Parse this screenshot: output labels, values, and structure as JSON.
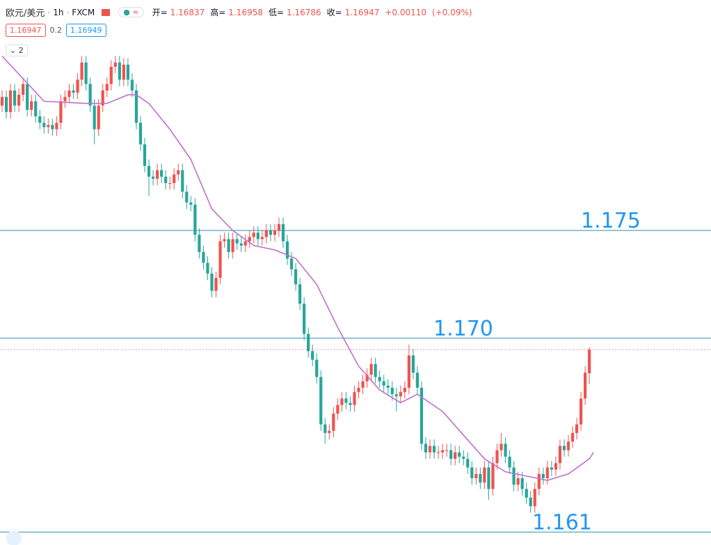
{
  "header": {
    "symbol": "欧元/美元",
    "interval": "1h",
    "source": "FXCM",
    "open_key": "开=",
    "high_key": "高=",
    "low_key": "低=",
    "close_key": "收=",
    "change": "+0.00110",
    "change_pct": "(+0.09%)",
    "pill": "≈"
  },
  "quote": {
    "bid": "1.16947",
    "spread": "0.2",
    "ask": "1.16949"
  },
  "indicators_count": "2",
  "chart_data": {
    "type": "candlestick",
    "xlim": [
      -0.5,
      169
    ],
    "ylim": [
      1.1604,
      1.1857
    ],
    "up_color": "#ef5350",
    "down_color": "#26a69a",
    "open": [
      1.1808,
      1.1812,
      1.1805,
      1.1815,
      1.1808,
      1.1813,
      1.1818,
      1.1806,
      1.181,
      1.1803,
      1.18,
      1.1798,
      1.1799,
      1.1797,
      1.18,
      1.181,
      1.1812,
      1.1815,
      1.1814,
      1.182,
      1.1828,
      1.1818,
      1.1808,
      1.1797,
      1.1808,
      1.1815,
      1.1818,
      1.1826,
      1.1828,
      1.182,
      1.1827,
      1.182,
      1.1815,
      1.18,
      1.179,
      1.178,
      1.1775,
      1.1774,
      1.1778,
      1.1775,
      1.1772,
      1.1772,
      1.1776,
      1.1778,
      1.1768,
      1.1763,
      1.1762,
      1.1748,
      1.174,
      1.1735,
      1.173,
      1.1722,
      1.1728,
      1.1745,
      1.1746,
      1.174,
      1.1746,
      1.1744,
      1.1743,
      1.1745,
      1.1747,
      1.1749,
      1.1746,
      1.1747,
      1.175,
      1.1748,
      1.175,
      1.1753,
      1.1745,
      1.1737,
      1.1732,
      1.1725,
      1.1716,
      1.1702,
      1.1694,
      1.169,
      1.1682,
      1.166,
      1.1656,
      1.1657,
      1.1665,
      1.1669,
      1.1672,
      1.167,
      1.1669,
      1.1675,
      1.1677,
      1.168,
      1.1683,
      1.1688,
      1.1682,
      1.168,
      1.1678,
      1.1677,
      1.1674,
      1.1673,
      1.1675,
      1.1677,
      1.1692,
      1.1684,
      1.1677,
      1.1651,
      1.1647,
      1.165,
      1.1647,
      1.1647,
      1.1648,
      1.1648,
      1.1644,
      1.1647,
      1.1645,
      1.1644,
      1.164,
      1.1635,
      1.1637,
      1.1633,
      1.164,
      1.163,
      1.1642,
      1.1648,
      1.1651,
      1.1645,
      1.164,
      1.1632,
      1.1635,
      1.163,
      1.1626,
      1.1622,
      1.163,
      1.1637,
      1.1635,
      1.164,
      1.1639,
      1.1642,
      1.165,
      1.1648,
      1.1652,
      1.1656,
      1.166,
      1.1672,
      1.16837
    ],
    "high": [
      1.1815,
      1.1815,
      1.1818,
      1.1818,
      1.1816,
      1.1821,
      1.1821,
      1.1813,
      1.1813,
      1.1806,
      1.1803,
      1.1802,
      1.1802,
      1.1803,
      1.1813,
      1.1815,
      1.1818,
      1.1818,
      1.1823,
      1.1831,
      1.1831,
      1.1821,
      1.1811,
      1.1811,
      1.1818,
      1.1821,
      1.1829,
      1.1831,
      1.1831,
      1.183,
      1.183,
      1.1823,
      1.1818,
      1.1803,
      1.1793,
      1.1783,
      1.1778,
      1.1781,
      1.1781,
      1.1778,
      1.1775,
      1.1779,
      1.1781,
      1.1781,
      1.1771,
      1.1766,
      1.1765,
      1.1751,
      1.1743,
      1.1738,
      1.1733,
      1.1731,
      1.1748,
      1.1749,
      1.1749,
      1.1749,
      1.1749,
      1.1747,
      1.1748,
      1.175,
      1.1752,
      1.1752,
      1.175,
      1.1753,
      1.1753,
      1.1753,
      1.1756,
      1.1756,
      1.1748,
      1.174,
      1.1735,
      1.1728,
      1.1719,
      1.1705,
      1.1697,
      1.1693,
      1.1685,
      1.1663,
      1.166,
      1.1668,
      1.1672,
      1.1675,
      1.1675,
      1.1673,
      1.1678,
      1.168,
      1.1683,
      1.1686,
      1.1691,
      1.1691,
      1.1685,
      1.1683,
      1.1681,
      1.168,
      1.1677,
      1.1678,
      1.168,
      1.1697,
      1.1695,
      1.1687,
      1.168,
      1.1654,
      1.1653,
      1.1653,
      1.165,
      1.1651,
      1.1651,
      1.1651,
      1.165,
      1.165,
      1.1648,
      1.1647,
      1.1643,
      1.164,
      1.164,
      1.1643,
      1.1643,
      1.1645,
      1.1651,
      1.1656,
      1.1654,
      1.1648,
      1.1643,
      1.1638,
      1.1638,
      1.1633,
      1.1629,
      1.1633,
      1.164,
      1.164,
      1.1643,
      1.1643,
      1.1645,
      1.1653,
      1.1653,
      1.1655,
      1.1659,
      1.1663,
      1.1675,
      1.1687,
      1.16958
    ],
    "low": [
      1.1805,
      1.1802,
      1.1802,
      1.1805,
      1.1805,
      1.181,
      1.1803,
      1.1803,
      1.18,
      1.1797,
      1.1795,
      1.1795,
      1.1794,
      1.1794,
      1.1797,
      1.1807,
      1.1809,
      1.1811,
      1.1811,
      1.1817,
      1.1815,
      1.1805,
      1.179,
      1.1794,
      1.1805,
      1.1812,
      1.1815,
      1.1823,
      1.1817,
      1.1817,
      1.1817,
      1.1812,
      1.1797,
      1.1787,
      1.1777,
      1.1766,
      1.1771,
      1.1771,
      1.1772,
      1.1769,
      1.1769,
      1.1769,
      1.1773,
      1.1765,
      1.176,
      1.1759,
      1.1745,
      1.1737,
      1.1732,
      1.1727,
      1.1719,
      1.1719,
      1.1725,
      1.1742,
      1.1737,
      1.1737,
      1.1741,
      1.174,
      1.174,
      1.1742,
      1.1744,
      1.1743,
      1.1743,
      1.1744,
      1.1745,
      1.1745,
      1.1747,
      1.1742,
      1.1734,
      1.1729,
      1.1722,
      1.1713,
      1.1699,
      1.1691,
      1.1687,
      1.1679,
      1.1657,
      1.1651,
      1.1653,
      1.1654,
      1.1662,
      1.1666,
      1.1667,
      1.1666,
      1.1666,
      1.1672,
      1.1674,
      1.1677,
      1.168,
      1.1679,
      1.1677,
      1.1675,
      1.1674,
      1.1671,
      1.1666,
      1.167,
      1.1672,
      1.1674,
      1.1681,
      1.1674,
      1.1648,
      1.1644,
      1.1644,
      1.1644,
      1.1644,
      1.1644,
      1.1645,
      1.1641,
      1.1641,
      1.1642,
      1.1641,
      1.1637,
      1.1632,
      1.1632,
      1.163,
      1.163,
      1.1625,
      1.1627,
      1.1639,
      1.1645,
      1.1642,
      1.1637,
      1.1629,
      1.1629,
      1.1627,
      1.1623,
      1.1619,
      1.1619,
      1.1627,
      1.1632,
      1.1632,
      1.1636,
      1.1636,
      1.1639,
      1.1645,
      1.1645,
      1.1649,
      1.1653,
      1.1657,
      1.1669,
      1.16786
    ],
    "close": [
      1.1812,
      1.1805,
      1.1815,
      1.1808,
      1.1813,
      1.1818,
      1.1806,
      1.181,
      1.1803,
      1.18,
      1.1798,
      1.1799,
      1.1797,
      1.18,
      1.181,
      1.1812,
      1.1815,
      1.1814,
      1.182,
      1.1828,
      1.1818,
      1.1808,
      1.1797,
      1.1808,
      1.1815,
      1.1818,
      1.1826,
      1.1828,
      1.182,
      1.1827,
      1.182,
      1.1815,
      1.18,
      1.179,
      1.178,
      1.1775,
      1.1774,
      1.1778,
      1.1775,
      1.1772,
      1.1772,
      1.1776,
      1.1778,
      1.1768,
      1.1763,
      1.1762,
      1.1748,
      1.174,
      1.1735,
      1.173,
      1.1722,
      1.1728,
      1.1745,
      1.1746,
      1.174,
      1.1746,
      1.1744,
      1.1743,
      1.1745,
      1.1747,
      1.1749,
      1.1746,
      1.1747,
      1.175,
      1.1748,
      1.175,
      1.1753,
      1.1745,
      1.1737,
      1.1732,
      1.1725,
      1.1716,
      1.1702,
      1.1694,
      1.169,
      1.1682,
      1.166,
      1.1656,
      1.1657,
      1.1665,
      1.1669,
      1.1672,
      1.167,
      1.1669,
      1.1675,
      1.1677,
      1.168,
      1.1683,
      1.1688,
      1.1682,
      1.168,
      1.1678,
      1.1677,
      1.1674,
      1.1673,
      1.1675,
      1.1677,
      1.1692,
      1.1684,
      1.1677,
      1.1651,
      1.1647,
      1.165,
      1.1647,
      1.1647,
      1.1648,
      1.1648,
      1.1644,
      1.1647,
      1.1645,
      1.1644,
      1.164,
      1.1635,
      1.1637,
      1.1633,
      1.164,
      1.163,
      1.1642,
      1.1648,
      1.1651,
      1.1645,
      1.164,
      1.1632,
      1.1635,
      1.163,
      1.1626,
      1.1622,
      1.163,
      1.1637,
      1.1635,
      1.164,
      1.1639,
      1.1642,
      1.165,
      1.1648,
      1.1652,
      1.1656,
      1.166,
      1.1672,
      1.1684,
      1.16947
    ],
    "ma": {
      "color": "#bf6fcc",
      "x": [
        0,
        10,
        20,
        25,
        30,
        32,
        35,
        40,
        45,
        50,
        55,
        60,
        65,
        70,
        75,
        80,
        85,
        90,
        95,
        99,
        105,
        110,
        115,
        120,
        125,
        130,
        135,
        140,
        141
      ],
      "values": [
        1.1831,
        1.181,
        1.1809,
        1.1809,
        1.1813,
        1.1813,
        1.1809,
        1.1797,
        1.1783,
        1.176,
        1.175,
        1.1743,
        1.1741,
        1.1737,
        1.1725,
        1.1705,
        1.1687,
        1.1676,
        1.167,
        1.1674,
        1.1666,
        1.1655,
        1.1644,
        1.1638,
        1.1636,
        1.1634,
        1.1637,
        1.1644,
        1.1647
      ]
    },
    "hlines": {
      "color": "#2f8fb0",
      "values": [
        1.175,
        1.17,
        1.161
      ],
      "labels": [
        "1.175",
        "1.170",
        "1.161"
      ],
      "label_color": "#2196f3"
    },
    "last_price_line_color": "#ef5350"
  }
}
